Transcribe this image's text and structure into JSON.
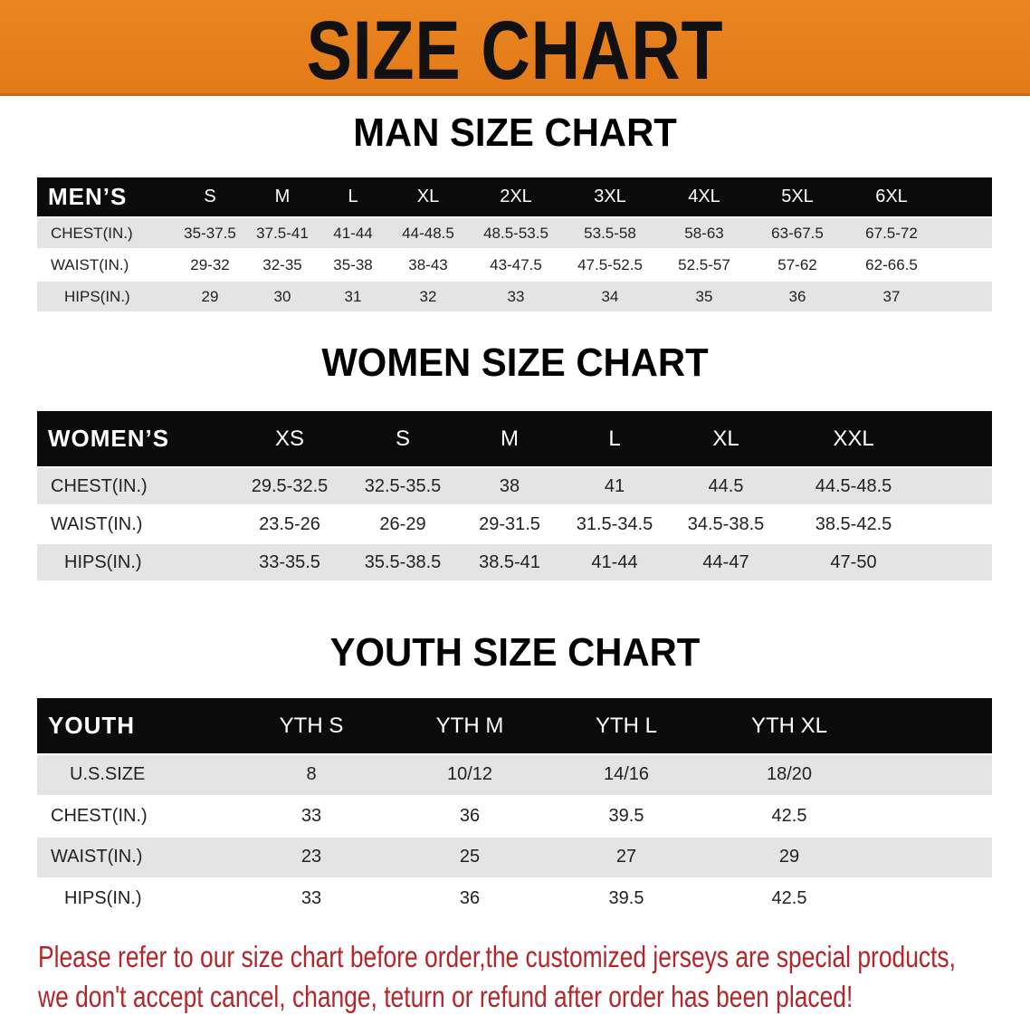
{
  "banner": {
    "title": "SIZE CHART",
    "color": "#E8801E"
  },
  "men": {
    "title": "MAN SIZE CHART",
    "header": [
      "MEN’S",
      "S",
      "M",
      "L",
      "XL",
      "2XL",
      "3XL",
      "4XL",
      "5XL",
      "6XL"
    ],
    "rows": [
      [
        "CHEST(IN.)",
        "35-37.5",
        "37.5-41",
        "41-44",
        "44-48.5",
        "48.5-53.5",
        "53.5-58",
        "58-63",
        "63-67.5",
        "67.5-72"
      ],
      [
        "WAIST(IN.)",
        "29-32",
        "32-35",
        "35-38",
        "38-43",
        "43-47.5",
        "47.5-52.5",
        "52.5-57",
        "57-62",
        "62-66.5"
      ],
      [
        "HIPS(IN.)",
        "29",
        "30",
        "31",
        "32",
        "33",
        "34",
        "35",
        "36",
        "37"
      ]
    ]
  },
  "women": {
    "title": "WOMEN SIZE CHART",
    "header": [
      "WOMEN’S",
      "XS",
      "S",
      "M",
      "L",
      "XL",
      "XXL"
    ],
    "rows": [
      [
        "CHEST(IN.)",
        "29.5-32.5",
        "32.5-35.5",
        "38",
        "41",
        "44.5",
        "44.5-48.5"
      ],
      [
        "WAIST(IN.)",
        "23.5-26",
        "26-29",
        "29-31.5",
        "31.5-34.5",
        "34.5-38.5",
        "38.5-42.5"
      ],
      [
        "HIPS(IN.)",
        "33-35.5",
        "35.5-38.5",
        "38.5-41",
        "41-44",
        "44-47",
        "47-50"
      ]
    ]
  },
  "youth": {
    "title": "YOUTH SIZE CHART",
    "header": [
      "YOUTH",
      "YTH S",
      "YTH M",
      "YTH L",
      "YTH XL"
    ],
    "rows": [
      [
        "U.S.SIZE",
        "8",
        "10/12",
        "14/16",
        "18/20"
      ],
      [
        "CHEST(IN.)",
        "33",
        "36",
        "39.5",
        "42.5"
      ],
      [
        "WAIST(IN.)",
        "23",
        "25",
        "27",
        "29"
      ],
      [
        "HIPS(IN.)",
        "33",
        "36",
        "39.5",
        "42.5"
      ]
    ]
  },
  "note": {
    "line1": "Please refer to our size chart before order,the customized jerseys are special products,",
    "line2": "we don't accept cancel, change, teturn or refund after order has been placed!",
    "color": "#B3262B"
  }
}
